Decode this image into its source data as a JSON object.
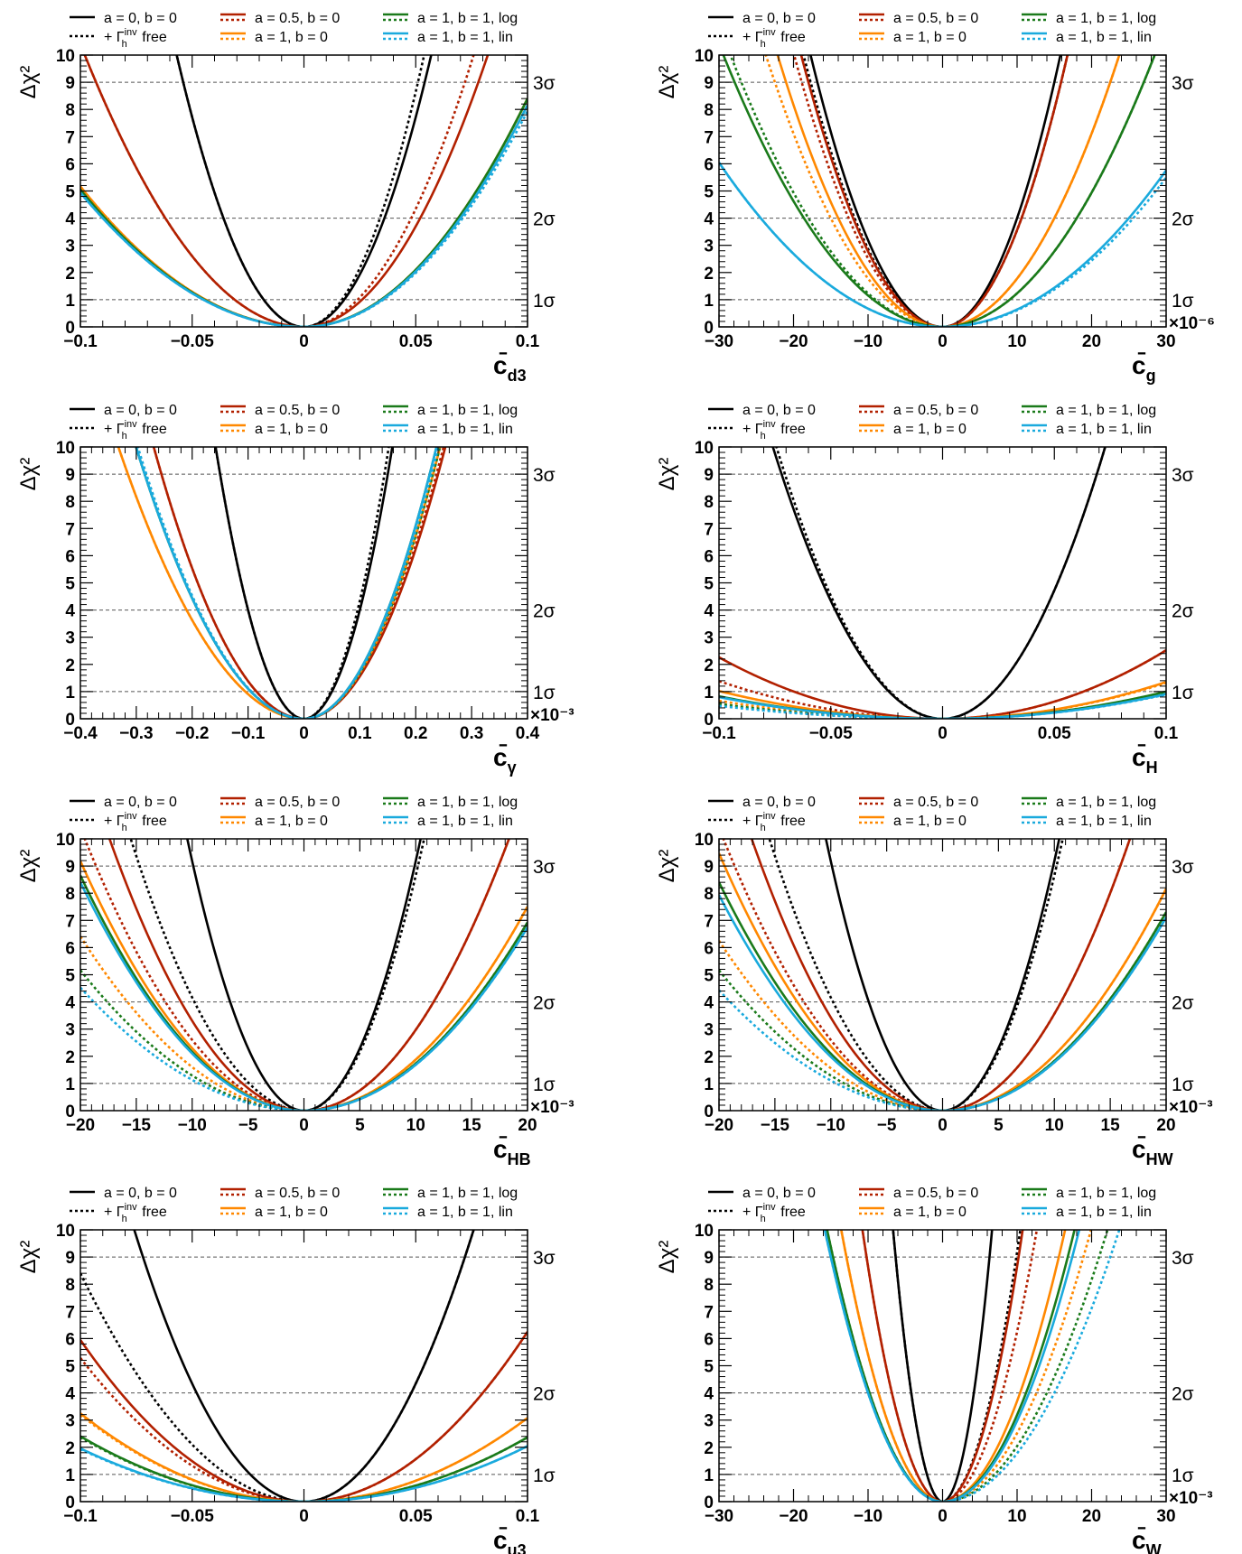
{
  "ylabel": "Δχ²",
  "legend": {
    "entries": [
      {
        "label": "a = 0, b = 0",
        "color": "#000000",
        "style": "solid"
      },
      {
        "label_prefix": "+ Γ",
        "label_sup": "inv",
        "label_sub": "h",
        "label_suffix": " free",
        "color": "#000000",
        "style": "dotted"
      },
      {
        "label": "a = 0.5, b = 0",
        "color": "#b22000",
        "style": "both"
      },
      {
        "label": "a = 1, b = 0",
        "color": "#ff8800",
        "style": "both"
      },
      {
        "label": "a = 1, b = 1, log",
        "color": "#1a7a1a",
        "style": "both"
      },
      {
        "label": "a = 1, b = 1, lin",
        "color": "#1aaadd",
        "style": "both"
      }
    ]
  },
  "sigma_lines": [
    {
      "y": 1,
      "label": "1σ"
    },
    {
      "y": 4,
      "label": "2σ"
    },
    {
      "y": 9,
      "label": "3σ"
    }
  ],
  "colors": {
    "black": "#000000",
    "red": "#b22000",
    "orange": "#ff8800",
    "green": "#1a7a1a",
    "cyan": "#1aaadd",
    "grid": "#555555"
  },
  "chart_data": [
    {
      "type": "line",
      "xlabel_main": "c̄",
      "xlabel_sub": "d3",
      "xlim": [
        -0.1,
        0.1
      ],
      "ylim": [
        0,
        10
      ],
      "xticks": [
        -0.1,
        -0.05,
        0,
        0.05,
        0.1
      ],
      "xtick_labels": [
        "−0.1",
        "−0.05",
        "0",
        "0.05",
        "0.1"
      ],
      "yticks": [
        0,
        1,
        2,
        3,
        4,
        5,
        6,
        7,
        8,
        9,
        10
      ],
      "exponent": "",
      "series": [
        {
          "color": "black",
          "style": "solid",
          "center": 0.0,
          "w1": 0.018,
          "w2": 0.018
        },
        {
          "color": "black",
          "style": "dotted",
          "center": 0.0,
          "w1": 0.018,
          "w2": 0.017
        },
        {
          "color": "red",
          "style": "solid",
          "center": 0.0,
          "w1": 0.031,
          "w2": 0.026
        },
        {
          "color": "red",
          "style": "dotted",
          "center": 0.0,
          "w1": 0.031,
          "w2": 0.024
        },
        {
          "color": "orange",
          "style": "solid",
          "center": 0.0,
          "w1": 0.044,
          "w2": 0.0345
        },
        {
          "color": "orange",
          "style": "dotted",
          "center": 0.0,
          "w1": 0.044,
          "w2": 0.0345
        },
        {
          "color": "green",
          "style": "solid",
          "center": 0.0,
          "w1": 0.0445,
          "w2": 0.0345
        },
        {
          "color": "green",
          "style": "dotted",
          "center": 0.0,
          "w1": 0.0445,
          "w2": 0.035
        },
        {
          "color": "cyan",
          "style": "solid",
          "center": 0.0,
          "w1": 0.045,
          "w2": 0.035
        },
        {
          "color": "cyan",
          "style": "dotted",
          "center": 0.0,
          "w1": 0.045,
          "w2": 0.0355
        }
      ]
    },
    {
      "type": "line",
      "xlabel_main": "c̄",
      "xlabel_sub": "g",
      "xlim": [
        -30,
        30
      ],
      "ylim": [
        0,
        10
      ],
      "xticks": [
        -30,
        -20,
        -10,
        0,
        10,
        20,
        30
      ],
      "xtick_labels": [
        "−30",
        "−20",
        "−10",
        "0",
        "10",
        "20",
        "30"
      ],
      "yticks": [
        0,
        1,
        2,
        3,
        4,
        5,
        6,
        7,
        8,
        9,
        10
      ],
      "exponent": "×10⁻⁶",
      "series": [
        {
          "color": "black",
          "style": "solid",
          "center": 0.0,
          "w1": 5.6,
          "w2": 5.0
        },
        {
          "color": "black",
          "style": "dotted",
          "center": 0.0,
          "w1": 5.9,
          "w2": 5.3
        },
        {
          "color": "red",
          "style": "solid",
          "center": 0.0,
          "w1": 6.0,
          "w2": 5.3
        },
        {
          "color": "red",
          "style": "dotted",
          "center": 0.0,
          "w1": 6.3,
          "w2": 5.3
        },
        {
          "color": "orange",
          "style": "solid",
          "center": 0.0,
          "w1": 7.0,
          "w2": 7.5
        },
        {
          "color": "orange",
          "style": "dotted",
          "center": 0.0,
          "w1": 7.5,
          "w2": 7.5
        },
        {
          "color": "green",
          "style": "solid",
          "center": 0.0,
          "w1": 9.3,
          "w2": 9.0
        },
        {
          "color": "green",
          "style": "dotted",
          "center": 0.0,
          "w1": 9.0,
          "w2": 9.0
        },
        {
          "color": "cyan",
          "style": "solid",
          "center": 0.0,
          "w1": 12.2,
          "w2": 12.5
        },
        {
          "color": "cyan",
          "style": "dotted",
          "center": 0.0,
          "w1": 12.2,
          "w2": 12.8
        }
      ]
    },
    {
      "type": "line",
      "xlabel_main": "c̄",
      "xlabel_sub": "γ",
      "xlim": [
        -0.4,
        0.4
      ],
      "ylim": [
        0,
        10
      ],
      "xticks": [
        -0.4,
        -0.3,
        -0.2,
        -0.1,
        0,
        0.1,
        0.2,
        0.3,
        0.4
      ],
      "xtick_labels": [
        "−0.4",
        "−0.3",
        "−0.2",
        "−0.1",
        "0",
        "0.1",
        "0.2",
        "0.3",
        "0.4"
      ],
      "yticks": [
        0,
        1,
        2,
        3,
        4,
        5,
        6,
        7,
        8,
        9,
        10
      ],
      "exponent": "×10⁻³",
      "series": [
        {
          "color": "black",
          "style": "solid",
          "center": 0.0,
          "w1": 0.05,
          "w2": 0.05
        },
        {
          "color": "black",
          "style": "dotted",
          "center": 0.0,
          "w1": 0.05,
          "w2": 0.048
        },
        {
          "color": "red",
          "style": "solid",
          "center": 0.0,
          "w1": 0.085,
          "w2": 0.08
        },
        {
          "color": "red",
          "style": "dotted",
          "center": 0.0,
          "w1": 0.085,
          "w2": 0.079
        },
        {
          "color": "orange",
          "style": "solid",
          "center": 0.0,
          "w1": 0.105,
          "w2": 0.077
        },
        {
          "color": "orange",
          "style": "dotted",
          "center": 0.0,
          "w1": 0.105,
          "w2": 0.077
        },
        {
          "color": "green",
          "style": "solid",
          "center": 0.0,
          "w1": 0.095,
          "w2": 0.075
        },
        {
          "color": "green",
          "style": "dotted",
          "center": 0.0,
          "w1": 0.095,
          "w2": 0.077
        },
        {
          "color": "cyan",
          "style": "solid",
          "center": 0.0,
          "w1": 0.095,
          "w2": 0.075
        },
        {
          "color": "cyan",
          "style": "dotted",
          "center": 0.0,
          "w1": 0.094,
          "w2": 0.076
        }
      ]
    },
    {
      "type": "line",
      "xlabel_main": "c̄",
      "xlabel_sub": "H",
      "xlim": [
        -0.1,
        0.1
      ],
      "ylim": [
        0,
        10
      ],
      "xticks": [
        -0.1,
        -0.05,
        0,
        0.05,
        0.1
      ],
      "xtick_labels": [
        "−0.1",
        "−0.05",
        "0",
        "0.05",
        "0.1"
      ],
      "yticks": [
        0,
        1,
        2,
        3,
        4,
        5,
        6,
        7,
        8,
        9,
        10
      ],
      "exponent": "",
      "series": [
        {
          "color": "black",
          "style": "solid",
          "center": 0.0,
          "w1": 0.024,
          "w2": 0.023
        },
        {
          "color": "black",
          "style": "dotted",
          "center": 0.0,
          "w1": 0.0235,
          "w2": 0.023
        },
        {
          "color": "red",
          "style": "solid",
          "center": 0.0,
          "w1": 0.0665,
          "w2": 0.063
        },
        {
          "color": "red",
          "style": "dotted",
          "center": 0.0,
          "w1": 0.085,
          "w2": 0.063
        },
        {
          "color": "orange",
          "style": "solid",
          "center": 0.0,
          "w1": 0.099,
          "w2": 0.086
        },
        {
          "color": "orange",
          "style": "dotted",
          "center": 0.0,
          "w1": 0.123,
          "w2": 0.087
        },
        {
          "color": "green",
          "style": "solid",
          "center": 0.0,
          "w1": 0.11,
          "w2": 0.1
        },
        {
          "color": "green",
          "style": "dotted",
          "center": 0.0,
          "w1": 0.135,
          "w2": 0.102
        },
        {
          "color": "cyan",
          "style": "solid",
          "center": 0.0,
          "w1": 0.112,
          "w2": 0.105
        },
        {
          "color": "cyan",
          "style": "dotted",
          "center": 0.0,
          "w1": 0.145,
          "w2": 0.106
        }
      ]
    },
    {
      "type": "line",
      "xlabel_main": "c̄",
      "xlabel_sub": "HB",
      "xlim": [
        -20,
        20
      ],
      "ylim": [
        0,
        10
      ],
      "xticks": [
        -20,
        -15,
        -10,
        -5,
        0,
        5,
        10,
        15,
        20
      ],
      "xtick_labels": [
        "−20",
        "−15",
        "−10",
        "−5",
        "0",
        "5",
        "10",
        "15",
        "20"
      ],
      "yticks": [
        0,
        1,
        2,
        3,
        4,
        5,
        6,
        7,
        8,
        9,
        10
      ],
      "exponent": "×10⁻³",
      "series": [
        {
          "color": "black",
          "style": "solid",
          "center": 0.0,
          "w1": 3.3,
          "w2": 3.3
        },
        {
          "color": "black",
          "style": "dotted",
          "center": 0.0,
          "w1": 4.9,
          "w2": 3.4
        },
        {
          "color": "red",
          "style": "solid",
          "center": 0.0,
          "w1": 5.5,
          "w2": 5.8
        },
        {
          "color": "red",
          "style": "dotted",
          "center": 0.0,
          "w1": 6.2,
          "w2": 5.8
        },
        {
          "color": "orange",
          "style": "solid",
          "center": 0.0,
          "w1": 6.6,
          "w2": 7.3
        },
        {
          "color": "orange",
          "style": "dotted",
          "center": 0.0,
          "w1": 7.9,
          "w2": 7.3
        },
        {
          "color": "green",
          "style": "solid",
          "center": 0.0,
          "w1": 6.8,
          "w2": 7.6
        },
        {
          "color": "green",
          "style": "dotted",
          "center": 0.0,
          "w1": 8.8,
          "w2": 7.6
        },
        {
          "color": "cyan",
          "style": "solid",
          "center": 0.0,
          "w1": 6.9,
          "w2": 7.7
        },
        {
          "color": "cyan",
          "style": "dotted",
          "center": 0.0,
          "w1": 9.4,
          "w2": 7.7
        }
      ]
    },
    {
      "type": "line",
      "xlabel_main": "c̄",
      "xlabel_sub": "HW",
      "xlim": [
        -20,
        20
      ],
      "ylim": [
        0,
        10
      ],
      "xticks": [
        -20,
        -15,
        -10,
        -5,
        0,
        5,
        10,
        15,
        20
      ],
      "xtick_labels": [
        "−20",
        "−15",
        "−10",
        "−5",
        "0",
        "5",
        "10",
        "15",
        "20"
      ],
      "yticks": [
        0,
        1,
        2,
        3,
        4,
        5,
        6,
        7,
        8,
        9,
        10
      ],
      "exponent": "×10⁻³",
      "series": [
        {
          "color": "black",
          "style": "solid",
          "center": 0.0,
          "w1": 3.3,
          "w2": 3.3
        },
        {
          "color": "black",
          "style": "dotted",
          "center": 0.0,
          "w1": 4.9,
          "w2": 3.4
        },
        {
          "color": "red",
          "style": "solid",
          "center": 0.0,
          "w1": 5.4,
          "w2": 5.3
        },
        {
          "color": "red",
          "style": "dotted",
          "center": 0.0,
          "w1": 6.2,
          "w2": 5.3
        },
        {
          "color": "orange",
          "style": "solid",
          "center": 0.0,
          "w1": 6.5,
          "w2": 7.0
        },
        {
          "color": "orange",
          "style": "dotted",
          "center": 0.0,
          "w1": 8.0,
          "w2": 7.0
        },
        {
          "color": "green",
          "style": "solid",
          "center": 0.0,
          "w1": 6.9,
          "w2": 7.4
        },
        {
          "color": "green",
          "style": "dotted",
          "center": 0.0,
          "w1": 8.8,
          "w2": 7.4
        },
        {
          "color": "cyan",
          "style": "solid",
          "center": 0.0,
          "w1": 7.1,
          "w2": 7.5
        },
        {
          "color": "cyan",
          "style": "dotted",
          "center": 0.0,
          "w1": 9.5,
          "w2": 7.5
        }
      ]
    },
    {
      "type": "line",
      "xlabel_main": "c̄",
      "xlabel_sub": "u3",
      "xlim": [
        -0.1,
        0.1
      ],
      "ylim": [
        0,
        10
      ],
      "xticks": [
        -0.1,
        -0.05,
        0,
        0.05,
        0.1
      ],
      "xtick_labels": [
        "−0.1",
        "−0.05",
        "0",
        "0.05",
        "0.1"
      ],
      "yticks": [
        0,
        1,
        2,
        3,
        4,
        5,
        6,
        7,
        8,
        9,
        10
      ],
      "exponent": "",
      "series": [
        {
          "color": "black",
          "style": "solid",
          "center": 0.0,
          "w1": 0.024,
          "w2": 0.024
        },
        {
          "color": "black",
          "style": "dotted",
          "center": 0.0,
          "w1": 0.0345,
          "w2": 0.024
        },
        {
          "color": "red",
          "style": "solid",
          "center": 0.0,
          "w1": 0.041,
          "w2": 0.04
        },
        {
          "color": "red",
          "style": "dotted",
          "center": 0.0,
          "w1": 0.0435,
          "w2": 0.04
        },
        {
          "color": "orange",
          "style": "solid",
          "center": 0.0,
          "w1": 0.0555,
          "w2": 0.057
        },
        {
          "color": "orange",
          "style": "dotted",
          "center": 0.0,
          "w1": 0.056,
          "w2": 0.057
        },
        {
          "color": "green",
          "style": "solid",
          "center": 0.0,
          "w1": 0.0645,
          "w2": 0.065
        },
        {
          "color": "green",
          "style": "dotted",
          "center": 0.0,
          "w1": 0.065,
          "w2": 0.065
        },
        {
          "color": "cyan",
          "style": "solid",
          "center": 0.0,
          "w1": 0.0715,
          "w2": 0.07
        },
        {
          "color": "cyan",
          "style": "dotted",
          "center": 0.0,
          "w1": 0.072,
          "w2": 0.07
        }
      ]
    },
    {
      "type": "line",
      "xlabel_main": "c̄",
      "xlabel_sub": "W",
      "xlim": [
        -30,
        30
      ],
      "ylim": [
        0,
        10
      ],
      "xticks": [
        -30,
        -20,
        -10,
        0,
        10,
        20,
        30
      ],
      "xtick_labels": [
        "−30",
        "−20",
        "−10",
        "0",
        "10",
        "20",
        "30"
      ],
      "yticks": [
        0,
        1,
        2,
        3,
        4,
        5,
        6,
        7,
        8,
        9,
        10
      ],
      "exponent": "×10⁻³",
      "series": [
        {
          "color": "black",
          "style": "solid",
          "center": 0.0,
          "w1": 2.1,
          "w2": 2.1
        },
        {
          "color": "black",
          "style": "dotted",
          "center": 0.0,
          "w1": 2.1,
          "w2": 3.3
        },
        {
          "color": "red",
          "style": "solid",
          "center": 0.0,
          "w1": 3.4,
          "w2": 3.4
        },
        {
          "color": "red",
          "style": "dotted",
          "center": 0.0,
          "w1": 3.4,
          "w2": 4.0
        },
        {
          "color": "orange",
          "style": "solid",
          "center": 0.0,
          "w1": 4.3,
          "w2": 5.2
        },
        {
          "color": "orange",
          "style": "dotted",
          "center": 0.0,
          "w1": 4.3,
          "w2": 6.3
        },
        {
          "color": "green",
          "style": "solid",
          "center": 0.0,
          "w1": 4.9,
          "w2": 5.6
        },
        {
          "color": "green",
          "style": "dotted",
          "center": 0.0,
          "w1": 4.9,
          "w2": 7.0
        },
        {
          "color": "cyan",
          "style": "solid",
          "center": 0.0,
          "w1": 5.0,
          "w2": 5.8
        },
        {
          "color": "cyan",
          "style": "dotted",
          "center": 0.0,
          "w1": 5.0,
          "w2": 7.5
        }
      ]
    }
  ]
}
